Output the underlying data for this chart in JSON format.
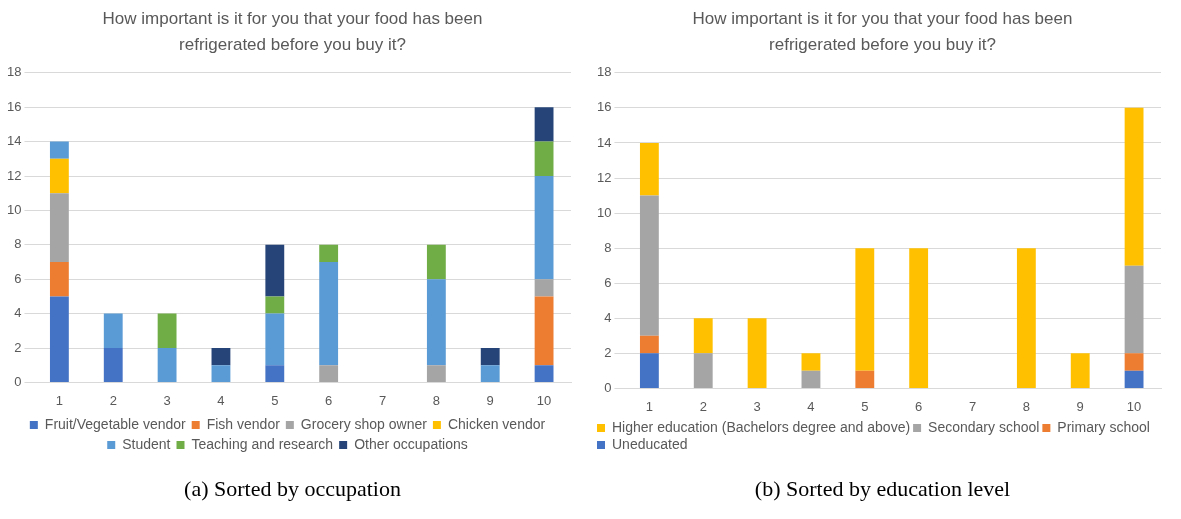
{
  "chart_data": [
    {
      "type": "bar",
      "title": "How important is it for you that your food has been refrigerated before you buy it?",
      "categories": [
        "1",
        "2",
        "3",
        "4",
        "5",
        "6",
        "7",
        "8",
        "9",
        "10"
      ],
      "stacked": true,
      "ylim": [
        0,
        18
      ],
      "yticks": [
        0,
        2,
        4,
        6,
        8,
        10,
        12,
        14,
        16,
        18
      ],
      "grid": "y",
      "legend": "bottom",
      "annotations": [
        "(a) Sorted by occupation"
      ],
      "series": [
        {
          "name": "Fruit/Vegetable vendor",
          "color": "#4472c4",
          "values": [
            5,
            2,
            0,
            0,
            1,
            0,
            0,
            0,
            0,
            1
          ]
        },
        {
          "name": "Fish vendor",
          "color": "#ed7d31",
          "values": [
            2,
            0,
            0,
            0,
            0,
            0,
            0,
            0,
            0,
            4
          ]
        },
        {
          "name": "Grocery shop owner",
          "color": "#a5a5a5",
          "values": [
            4,
            0,
            0,
            0,
            0,
            1,
            0,
            1,
            0,
            1
          ]
        },
        {
          "name": "Chicken vendor",
          "color": "#ffc000",
          "values": [
            2,
            0,
            0,
            0,
            0,
            0,
            0,
            0,
            0,
            0
          ]
        },
        {
          "name": "Student",
          "color": "#5b9bd5",
          "values": [
            1,
            2,
            2,
            1,
            3,
            6,
            0,
            5,
            1,
            6
          ]
        },
        {
          "name": "Teaching and research",
          "color": "#70ad47",
          "values": [
            0,
            0,
            2,
            0,
            1,
            1,
            0,
            2,
            0,
            2
          ]
        },
        {
          "name": "Other occupations",
          "color": "#264478",
          "values": [
            0,
            0,
            0,
            1,
            3,
            0,
            0,
            0,
            1,
            2
          ]
        }
      ]
    },
    {
      "type": "bar",
      "title": "How important is it for you that your food has been refrigerated before you buy it?",
      "categories": [
        "1",
        "2",
        "3",
        "4",
        "5",
        "6",
        "7",
        "8",
        "9",
        "10"
      ],
      "stacked": true,
      "ylim": [
        0,
        18
      ],
      "yticks": [
        0,
        2,
        4,
        6,
        8,
        10,
        12,
        14,
        16,
        18
      ],
      "grid": "y",
      "legend": "bottom left",
      "annotations": [
        "(b) Sorted by education level"
      ],
      "series": [
        {
          "name": "Uneducated",
          "color": "#4472c4",
          "values": [
            2,
            0,
            0,
            0,
            0,
            0,
            0,
            0,
            0,
            1
          ]
        },
        {
          "name": "Primary school",
          "color": "#ed7d31",
          "values": [
            1,
            0,
            0,
            0,
            1,
            0,
            0,
            0,
            0,
            1
          ]
        },
        {
          "name": "Secondary school",
          "color": "#a5a5a5",
          "values": [
            8,
            2,
            0,
            1,
            0,
            0,
            0,
            0,
            0,
            5
          ]
        },
        {
          "name": "Higher education (Bachelors degree and above)",
          "color": "#ffc000",
          "values": [
            3,
            2,
            4,
            1,
            7,
            8,
            0,
            8,
            2,
            9
          ]
        }
      ]
    }
  ]
}
